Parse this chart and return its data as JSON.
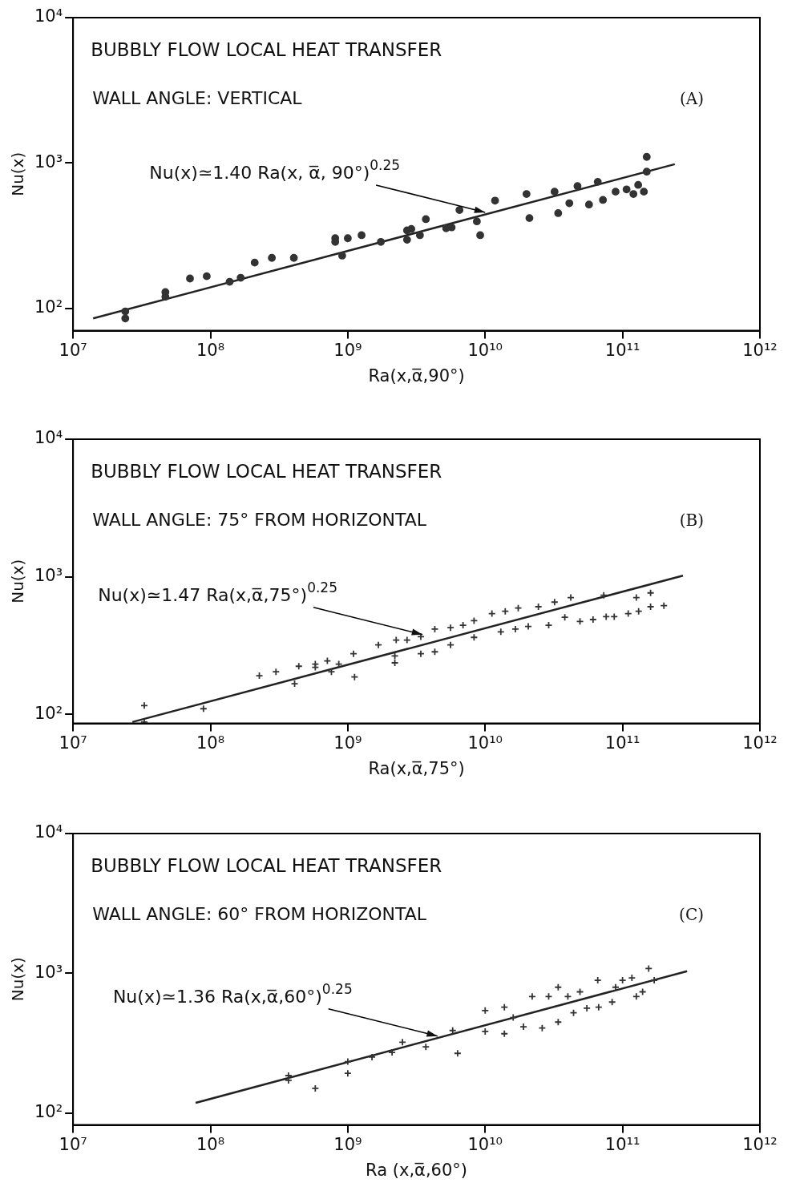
{
  "chart_data": [
    {
      "type": "scatter",
      "title": "BUBBLY FLOW LOCAL HEAT TRANSFER",
      "subtitle": "WALL ANGLE: VERTICAL",
      "xlabel": "Ra(x,α̅,90°)",
      "ylabel": "Nu(x)",
      "log": "xy",
      "grid": false,
      "legend": false,
      "xlim": [
        10000000,
        1000000000000
      ],
      "ylim": [
        70,
        10000
      ],
      "xticks": [
        {
          "value": 10000000,
          "label": "10⁷"
        },
        {
          "value": 100000000,
          "label": "10⁸"
        },
        {
          "value": 1000000000,
          "label": "10⁹"
        },
        {
          "value": 10000000000,
          "label": "10¹⁰"
        },
        {
          "value": 100000000000,
          "label": "10¹¹"
        },
        {
          "value": 1000000000000,
          "label": "10¹²"
        }
      ],
      "yticks": [
        {
          "value": 100,
          "label": "10²"
        },
        {
          "value": 1000,
          "label": "10³"
        },
        {
          "value": 10000,
          "label": "10⁴"
        }
      ],
      "annotations": [
        "(A)",
        {
          "text": "Nu(x)≃1.40 Ra(x, α̅, 90°)$^{0.25}$",
          "x": 10000000000,
          "y": 457
        }
      ],
      "series": [
        {
          "marker": "circle",
          "color": "#333333",
          "x": [
            24000000.0,
            24000000.0,
            47000000.0,
            47000000.0,
            71000000.0,
            94000000.0,
            138000000.0,
            166000000.0,
            210000000.0,
            280000000.0,
            405000000.0,
            810000000.0,
            810000000.0,
            910000000.0,
            1000000000.0,
            1260000000.0,
            1740000000.0,
            2700000000.0,
            2700000000.0,
            2900000000.0,
            3350000000.0,
            3700000000.0,
            5200000000.0,
            5700000000.0,
            6500000000.0,
            8700000000.0,
            9200000000.0,
            11800000000.0,
            20000000000.0,
            21000000000.0,
            32000000000.0,
            34000000000.0,
            41000000000.0,
            47000000000.0,
            57000000000.0,
            66000000000.0,
            72000000000.0,
            89000000000.0,
            107000000000.0,
            120000000000.0,
            130000000000.0,
            143000000000.0,
            150000000000.0,
            150000000000.0
          ],
          "values": [
            95,
            85,
            129,
            120,
            160,
            166,
            152,
            162,
            206,
            222,
            222,
            286,
            303,
            230,
            303,
            318,
            286,
            296,
            343,
            351,
            318,
            410,
            355,
            360,
            474,
            396,
            318,
            550,
            611,
            417,
            634,
            451,
            528,
            692,
            517,
            741,
            556,
            634,
            657,
            611,
            706,
            634,
            1100,
            870
          ]
        },
        {
          "type": "line",
          "marker": "none",
          "color": "#222222",
          "x": [
            14000000.0,
            240000000000.0
          ],
          "values": [
            85,
            980
          ]
        }
      ]
    },
    {
      "type": "scatter",
      "title": "BUBBLY FLOW LOCAL HEAT TRANSFER",
      "subtitle": "WALL ANGLE: 75° FROM HORIZONTAL",
      "xlabel": "Ra(x,α̅,75°)",
      "ylabel": "Nu(x)",
      "log": "xy",
      "grid": false,
      "legend": false,
      "xlim": [
        10000000,
        1000000000000
      ],
      "ylim": [
        86,
        10000
      ],
      "xticks": [
        {
          "value": 10000000,
          "label": "10⁷"
        },
        {
          "value": 100000000,
          "label": "10⁸"
        },
        {
          "value": 1000000000,
          "label": "10⁹"
        },
        {
          "value": 10000000000,
          "label": "10¹⁰"
        },
        {
          "value": 100000000000,
          "label": "10¹¹"
        },
        {
          "value": 1000000000000,
          "label": "10¹²"
        }
      ],
      "yticks": [
        {
          "value": 100,
          "label": "10²"
        },
        {
          "value": 1000,
          "label": "10³"
        },
        {
          "value": 10000,
          "label": "10⁴"
        }
      ],
      "annotations": [
        "(B)",
        {
          "text": "Nu(x)≃1.47 Ra(x,α̅,75°)$^{0.25}$",
          "x": 3500000000,
          "y": 380
        }
      ],
      "series": [
        {
          "marker": "cross",
          "color": "#333333",
          "x": [
            33000000.0,
            33000000.0,
            89000000.0,
            227000000.0,
            300000000.0,
            410000000.0,
            440000000.0,
            580000000.0,
            580000000.0,
            710000000.0,
            760000000.0,
            860000000.0,
            1100000000.0,
            1120000000.0,
            1670000000.0,
            2200000000.0,
            2200000000.0,
            2250000000.0,
            2700000000.0,
            3400000000.0,
            3400000000.0,
            4300000000.0,
            4300000000.0,
            5600000000.0,
            5600000000.0,
            6900000000.0,
            8300000000.0,
            8300000000.0,
            11200000000.0,
            13000000000.0,
            14000000000.0,
            16600000000.0,
            17400000000.0,
            20600000000.0,
            24400000000.0,
            29000000000.0,
            32000000000.0,
            38000000000.0,
            42000000000.0,
            49000000000.0,
            61000000000.0,
            76000000000.0,
            87000000000.0,
            73000000000.0,
            110000000000.0,
            126000000000.0,
            131000000000.0,
            160000000000.0,
            160000000000.0,
            200000000000.0
          ],
          "values": [
            116,
            88,
            110,
            191,
            204,
            167,
            224,
            232,
            220,
            245,
            204,
            232,
            276,
            187,
            320,
            266,
            237,
            347,
            347,
            276,
            367,
            417,
            285,
            427,
            320,
            445,
            480,
            363,
            540,
            398,
            562,
            417,
            593,
            436,
            606,
            445,
            655,
            508,
            707,
            474,
            489,
            513,
            513,
            735,
            540,
            707,
            562,
            764,
            606,
            617
          ]
        },
        {
          "type": "line",
          "marker": "none",
          "color": "#222222",
          "x": [
            27000000.0,
            275000000000.0
          ],
          "values": [
            88,
            1020
          ]
        }
      ]
    },
    {
      "type": "scatter",
      "title": "BUBBLY FLOW LOCAL HEAT TRANSFER",
      "subtitle": "WALL ANGLE: 60° FROM HORIZONTAL",
      "xlabel": "Ra (x,α̅,60°)",
      "ylabel": "Nu(x)",
      "log": "xy",
      "grid": false,
      "legend": false,
      "xlim": [
        10000000,
        1000000000000
      ],
      "ylim": [
        82,
        10000
      ],
      "xticks": [
        {
          "value": 10000000,
          "label": "10⁷"
        },
        {
          "value": 100000000,
          "label": "10⁸"
        },
        {
          "value": 1000000000,
          "label": "10⁹"
        },
        {
          "value": 10000000000,
          "label": "10¹⁰"
        },
        {
          "value": 100000000000,
          "label": "10¹¹"
        },
        {
          "value": 1000000000000,
          "label": "10¹²"
        }
      ],
      "yticks": [
        {
          "value": 100,
          "label": "10²"
        },
        {
          "value": 1000,
          "label": "10³"
        },
        {
          "value": 10000,
          "label": "10⁴"
        }
      ],
      "annotations": [
        "(C)",
        {
          "text": "Nu(x)≃1.36 Ra(x,α̅,60°)$^{0.25}$",
          "x": 4500000000,
          "y": 355
        }
      ],
      "series": [
        {
          "marker": "cross",
          "color": "#333333",
          "x": [
            370000000.0,
            370000000.0,
            580000000.0,
            1000000000.0,
            1000000000.0,
            1500000000.0,
            2100000000.0,
            2500000000.0,
            3700000000.0,
            5800000000.0,
            6300000000.0,
            10000000000.0,
            10000000000.0,
            13800000000.0,
            13800000000.0,
            16000000000.0,
            19000000000.0,
            22000000000.0,
            26000000000.0,
            29000000000.0,
            34000000000.0,
            34000000000.0,
            40000000000.0,
            44000000000.0,
            49000000000.0,
            55000000000.0,
            66000000000.0,
            67000000000.0,
            84000000000.0,
            89000000000.0,
            100000000000.0,
            117000000000.0,
            126000000000.0,
            140000000000.0,
            155000000000.0,
            170000000000.0
          ],
          "values": [
            185,
            171,
            150,
            233,
            192,
            251,
            271,
            321,
            297,
            389,
            267,
            541,
            383,
            571,
            369,
            482,
            414,
            681,
            405,
            681,
            794,
            447,
            681,
            521,
            736,
            562,
            891,
            571,
            622,
            794,
            891,
            926,
            681,
            736,
            1080,
            891
          ]
        },
        {
          "type": "line",
          "marker": "none",
          "color": "#222222",
          "x": [
            78000000.0,
            295000000000.0
          ],
          "values": [
            118,
            1035
          ]
        }
      ]
    }
  ]
}
